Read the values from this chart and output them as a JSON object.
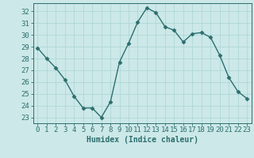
{
  "x": [
    0,
    1,
    2,
    3,
    4,
    5,
    6,
    7,
    8,
    9,
    10,
    11,
    12,
    13,
    14,
    15,
    16,
    17,
    18,
    19,
    20,
    21,
    22,
    23
  ],
  "y": [
    28.9,
    28.0,
    27.2,
    26.2,
    24.8,
    23.8,
    23.8,
    23.0,
    24.3,
    27.7,
    29.3,
    31.1,
    32.3,
    31.9,
    30.7,
    30.4,
    29.4,
    30.1,
    30.2,
    29.8,
    28.3,
    26.4,
    25.2,
    24.6
  ],
  "line_color": "#2d6e6e",
  "marker": "D",
  "markersize": 2.5,
  "linewidth": 1.0,
  "bg_color": "#cce8e8",
  "grid_color": "#aad4d4",
  "tick_color": "#2d6e6e",
  "xlabel": "Humidex (Indice chaleur)",
  "ylim": [
    22.5,
    32.7
  ],
  "yticks": [
    23,
    24,
    25,
    26,
    27,
    28,
    29,
    30,
    31,
    32
  ],
  "xticks": [
    0,
    1,
    2,
    3,
    4,
    5,
    6,
    7,
    8,
    9,
    10,
    11,
    12,
    13,
    14,
    15,
    16,
    17,
    18,
    19,
    20,
    21,
    22,
    23
  ],
  "xlabel_fontsize": 7,
  "tick_fontsize": 6.5
}
